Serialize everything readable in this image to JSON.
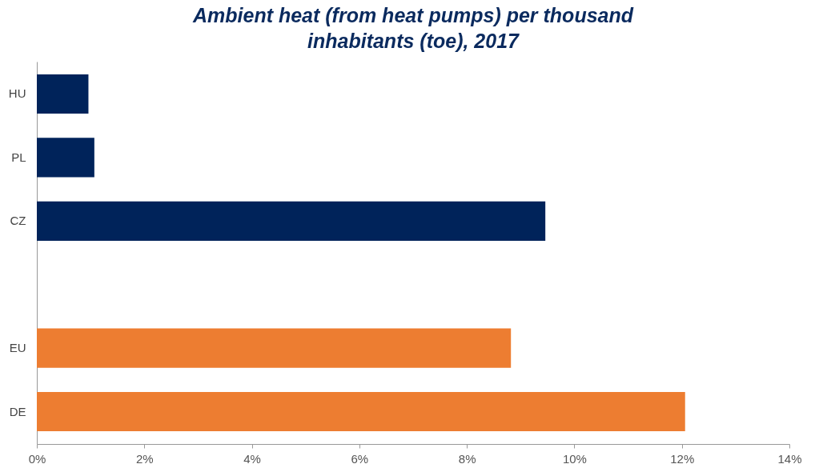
{
  "chart_data": {
    "type": "bar",
    "orientation": "horizontal",
    "title": "Ambient heat (from heat pumps) per thousand inhabitants (toe), 2017",
    "categories": [
      "HU",
      "PL",
      "CZ",
      null,
      "EU",
      "DE"
    ],
    "values": [
      0.96,
      1.07,
      9.46,
      null,
      8.82,
      12.06
    ],
    "colors": [
      "#00235a",
      "#00235a",
      "#00235a",
      null,
      "#ed7d31",
      "#ed7d31"
    ],
    "xlim": [
      0,
      14
    ],
    "xticks": [
      {
        "value": 0,
        "label": "0%"
      },
      {
        "value": 2,
        "label": "2%"
      },
      {
        "value": 4,
        "label": "4%"
      },
      {
        "value": 6,
        "label": "6%"
      },
      {
        "value": 8,
        "label": "8%"
      },
      {
        "value": 10,
        "label": "10%"
      },
      {
        "value": 12,
        "label": "12%"
      },
      {
        "value": 14,
        "label": "14%"
      }
    ],
    "grid": false,
    "legend": false
  }
}
